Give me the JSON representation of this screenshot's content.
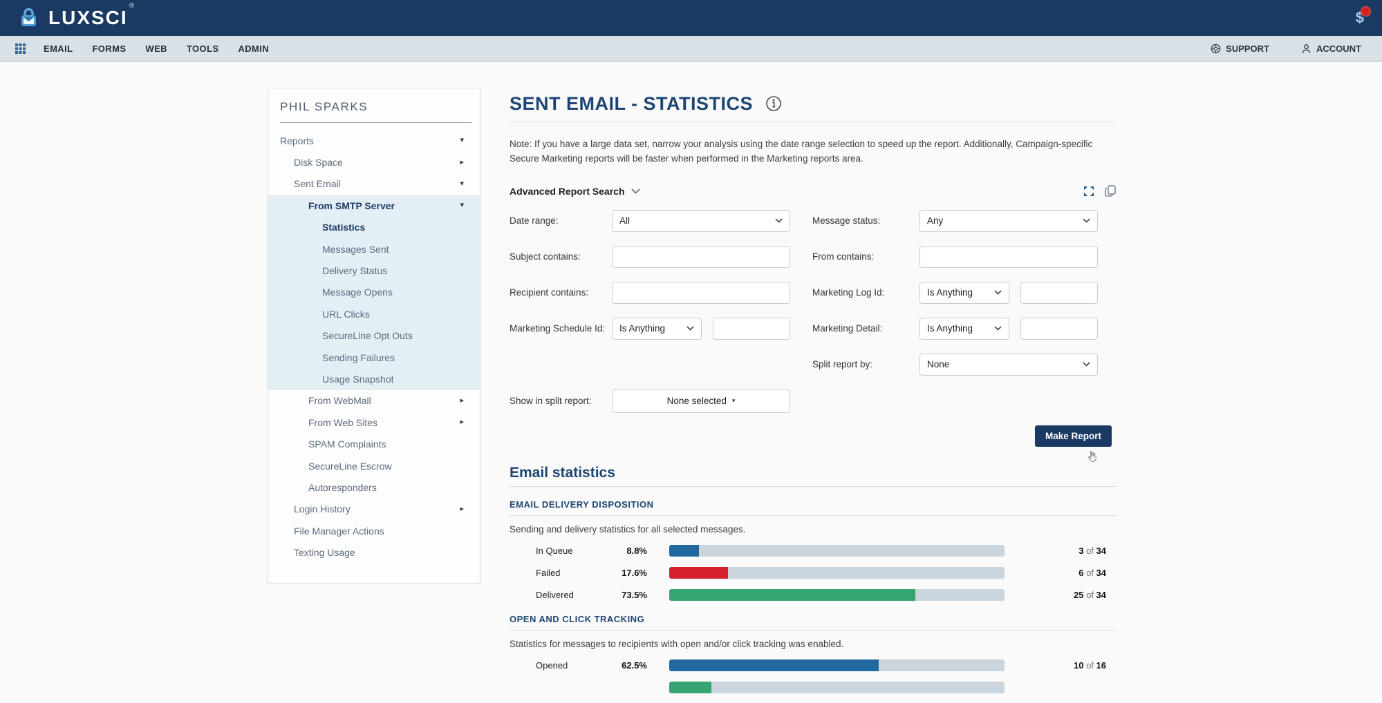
{
  "topbar": {
    "brand": "LUXSCI",
    "registered": "®",
    "billing_glyph": "$"
  },
  "navbar": {
    "menu": [
      "EMAIL",
      "FORMS",
      "WEB",
      "TOOLS",
      "ADMIN"
    ],
    "support_label": "SUPPORT",
    "account_label": "ACCOUNT"
  },
  "sidebar": {
    "title": "PHIL SPARKS",
    "items": [
      {
        "label": "Reports",
        "level": 0,
        "caret": "down",
        "bold": false,
        "highlight": false
      },
      {
        "label": "Disk Space",
        "level": 1,
        "caret": "right",
        "bold": false,
        "highlight": false
      },
      {
        "label": "Sent Email",
        "level": 1,
        "caret": "down",
        "bold": false,
        "highlight": false
      },
      {
        "label": "From SMTP Server",
        "level": 2,
        "caret": "down",
        "bold": true,
        "highlight": true
      },
      {
        "label": "Statistics",
        "level": 3,
        "caret": null,
        "bold": true,
        "highlight": true
      },
      {
        "label": "Messages Sent",
        "level": 3,
        "caret": null,
        "bold": false,
        "highlight": true
      },
      {
        "label": "Delivery Status",
        "level": 3,
        "caret": null,
        "bold": false,
        "highlight": true
      },
      {
        "label": "Message Opens",
        "level": 3,
        "caret": null,
        "bold": false,
        "highlight": true
      },
      {
        "label": "URL Clicks",
        "level": 3,
        "caret": null,
        "bold": false,
        "highlight": true
      },
      {
        "label": "SecureLine Opt Outs",
        "level": 3,
        "caret": null,
        "bold": false,
        "highlight": true
      },
      {
        "label": "Sending Failures",
        "level": 3,
        "caret": null,
        "bold": false,
        "highlight": true
      },
      {
        "label": "Usage Snapshot",
        "level": 3,
        "caret": null,
        "bold": false,
        "highlight": true
      },
      {
        "label": "From WebMail",
        "level": 2,
        "caret": "right",
        "bold": false,
        "highlight": false
      },
      {
        "label": "From Web Sites",
        "level": 2,
        "caret": "right",
        "bold": false,
        "highlight": false
      },
      {
        "label": "SPAM Complaints",
        "level": 2,
        "caret": null,
        "bold": false,
        "highlight": false
      },
      {
        "label": "SecureLine Escrow",
        "level": 2,
        "caret": null,
        "bold": false,
        "highlight": false
      },
      {
        "label": "Autoresponders",
        "level": 2,
        "caret": null,
        "bold": false,
        "highlight": false
      },
      {
        "label": "Login History",
        "level": 1,
        "caret": "right",
        "bold": false,
        "highlight": false
      },
      {
        "label": "File Manager Actions",
        "level": 1,
        "caret": null,
        "bold": false,
        "highlight": false
      },
      {
        "label": "Texting Usage",
        "level": 1,
        "caret": null,
        "bold": false,
        "highlight": false
      }
    ]
  },
  "main": {
    "title": "SENT EMAIL - STATISTICS",
    "note": "Note: If you have a large data set, narrow your analysis using the date range selection to speed up the report. Additionally, Campaign-specific Secure Marketing reports will be faster when performed in the Marketing reports area.",
    "search": {
      "header": "Advanced Report Search",
      "date_range": {
        "label": "Date range:",
        "value": "All"
      },
      "message_status": {
        "label": "Message status:",
        "value": "Any"
      },
      "subject": {
        "label": "Subject contains:",
        "value": ""
      },
      "from": {
        "label": "From contains:",
        "value": ""
      },
      "recipient": {
        "label": "Recipient contains:",
        "value": ""
      },
      "marketing_log_id": {
        "label": "Marketing Log Id:",
        "op": "Is Anything",
        "value": ""
      },
      "marketing_schedule_id": {
        "label": "Marketing Schedule Id:",
        "op": "Is Anything",
        "value": ""
      },
      "marketing_detail": {
        "label": "Marketing Detail:",
        "op": "Is Anything",
        "value": ""
      },
      "split_report_by": {
        "label": "Split report by:",
        "value": "None"
      },
      "show_in_split_report": {
        "label": "Show in split report:",
        "value": "None selected"
      }
    },
    "make_report_label": "Make Report",
    "stats": {
      "heading": "Email statistics",
      "sections": [
        {
          "heading": "EMAIL DELIVERY DISPOSITION",
          "description": "Sending and delivery statistics for all selected messages.",
          "total": 34,
          "rows": [
            {
              "label": "In Queue",
              "percent": "8.8%",
              "value": 8.8,
              "color": "blue",
              "count": "3 of 34"
            },
            {
              "label": "Failed",
              "percent": "17.6%",
              "value": 17.6,
              "color": "red",
              "count": "6 of 34"
            },
            {
              "label": "Delivered",
              "percent": "73.5%",
              "value": 73.5,
              "color": "green",
              "count": "25 of 34"
            }
          ]
        },
        {
          "heading": "OPEN AND CLICK TRACKING",
          "description": "Statistics for messages to recipients with open and/or click tracking was enabled.",
          "total": 16,
          "rows": [
            {
              "label": "Opened",
              "percent": "62.5%",
              "value": 62.5,
              "color": "blue",
              "count": "10 of 16"
            },
            {
              "label": "",
              "percent": "",
              "value": 12.5,
              "color": "green",
              "count": "",
              "partial": true
            }
          ]
        }
      ]
    }
  },
  "colors": {
    "topbar": "#1a3a64",
    "navbar": "#d9e0e6",
    "accent": "#1d4573",
    "sidebar_highlight": "#e4eef5",
    "bar_track": "#cbd5dd",
    "bar_blue": "#21689f",
    "bar_red": "#d51f2d",
    "bar_green": "#36a473",
    "badge": "#d82222",
    "button": "#1a3a64"
  }
}
